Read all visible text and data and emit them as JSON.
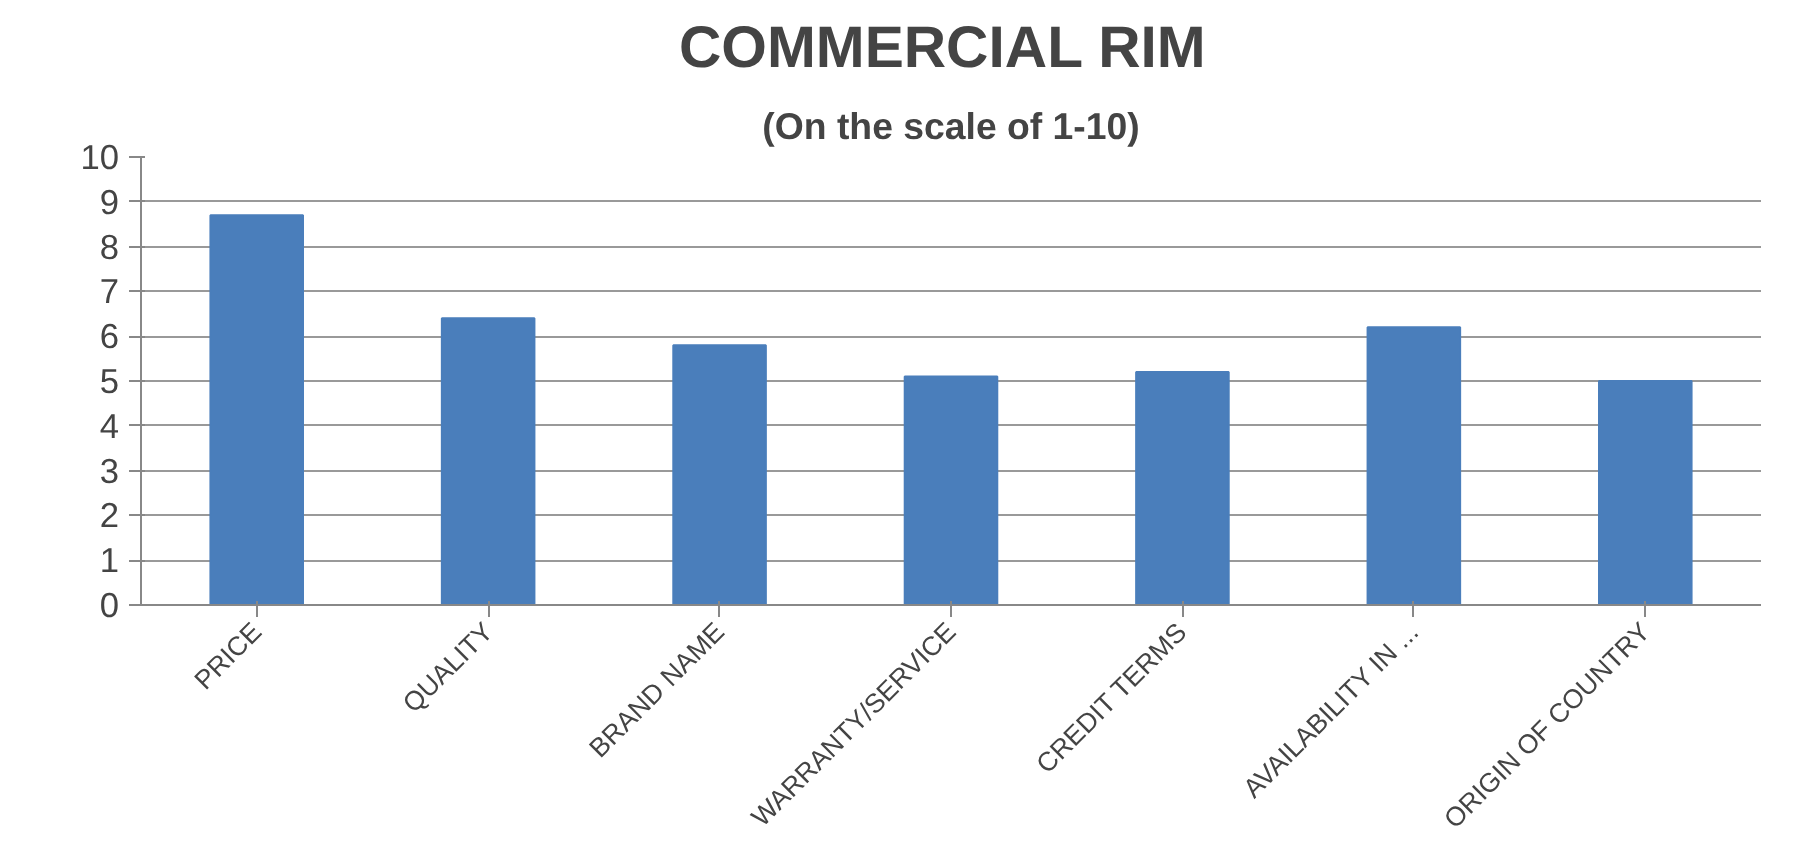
{
  "chart_data": {
    "type": "bar",
    "title": "COMMERCIAL  RIM",
    "subtitle": "(On the scale of 1-10)",
    "categories": [
      "PRICE",
      "QUALITY",
      "BRAND NAME",
      "WARRANTY/SERVICE",
      "CREDIT TERMS",
      "AVAILABILITY IN ...",
      "ORIGIN OF COUNTRY"
    ],
    "values": [
      8.7,
      6.4,
      5.8,
      5.1,
      5.2,
      6.2,
      5.0
    ],
    "color": "#4a7ebb",
    "ylim": [
      0,
      10
    ],
    "yticks": [
      0,
      1,
      2,
      3,
      4,
      5,
      6,
      7,
      8,
      9,
      10
    ],
    "grid": "y"
  }
}
